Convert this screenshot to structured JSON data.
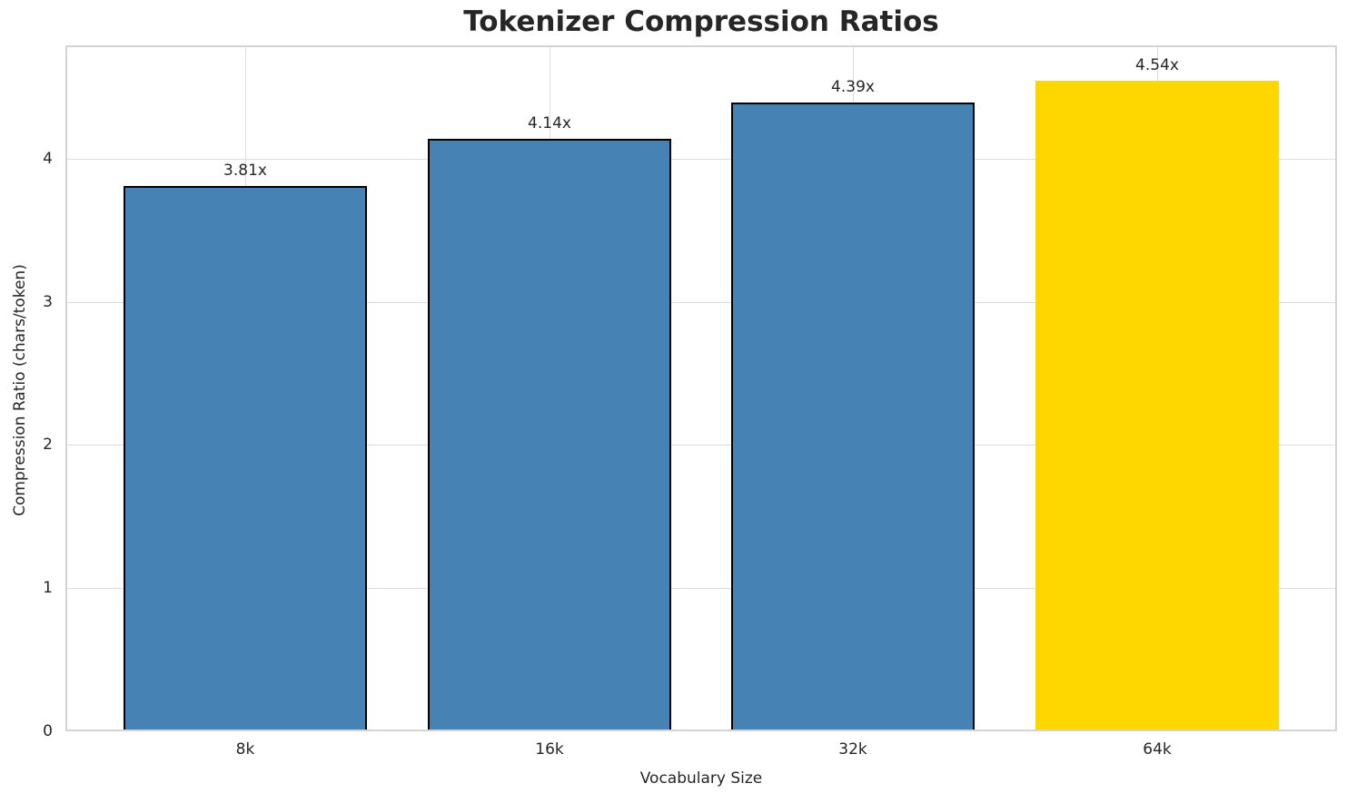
{
  "chart_data": {
    "type": "bar",
    "title": "Tokenizer Compression Ratios",
    "xlabel": "Vocabulary Size",
    "ylabel": "Compression Ratio (chars/token)",
    "categories": [
      "8k",
      "16k",
      "32k",
      "64k"
    ],
    "values": [
      3.81,
      4.14,
      4.39,
      4.54
    ],
    "bar_labels": [
      "3.81x",
      "4.14x",
      "4.39x",
      "4.54x"
    ],
    "yticks": [
      0,
      1,
      2,
      3,
      4
    ],
    "ylim": [
      0,
      4.79
    ],
    "grid": true,
    "legend": false,
    "highlight_index": 3,
    "bar_colors": [
      "#4682B4",
      "#4682B4",
      "#4682B4",
      "#FFD700"
    ],
    "bar_edge_colors": [
      "#000000",
      "#000000",
      "#000000",
      "none"
    ],
    "colors": {
      "bar_default": "#4682B4",
      "bar_highlight": "#FFD700",
      "bar_edge": "#000000",
      "grid": "#DCDCDC",
      "spine": "#D4D4D4",
      "text": "#262626",
      "background": "#FFFFFF"
    }
  }
}
